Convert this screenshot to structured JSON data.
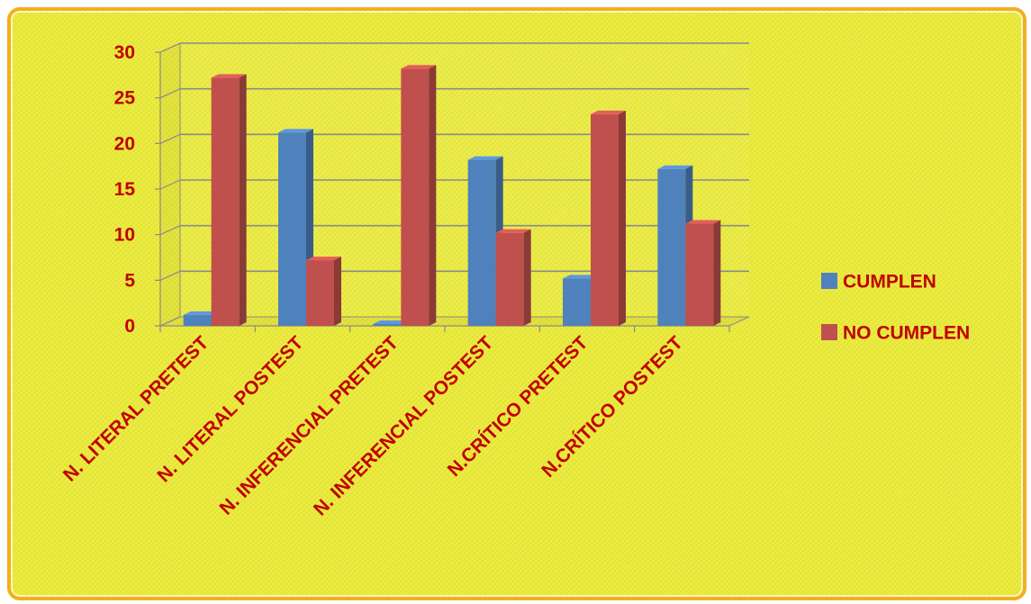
{
  "chart_data": {
    "type": "bar",
    "categories": [
      "N. LITERAL PRETEST",
      "N. LITERAL POSTEST",
      "N. INFERENCIAL PRETEST",
      "N. INFERENCIAL POSTEST",
      "N.CRÍTICO PRETEST",
      "N.CRÍTICO POSTEST"
    ],
    "series": [
      {
        "name": "CUMPLEN",
        "values": [
          1,
          21,
          0,
          18,
          5,
          17
        ],
        "color": "#4f81bd"
      },
      {
        "name": "NO CUMPLEN",
        "values": [
          27,
          7,
          28,
          10,
          23,
          11
        ],
        "color": "#c0504d"
      }
    ],
    "ylim": [
      0,
      30
    ],
    "yticks": [
      0,
      5,
      10,
      15,
      20,
      25,
      30
    ],
    "grid": true,
    "legend_position": "right",
    "three_d": true
  }
}
